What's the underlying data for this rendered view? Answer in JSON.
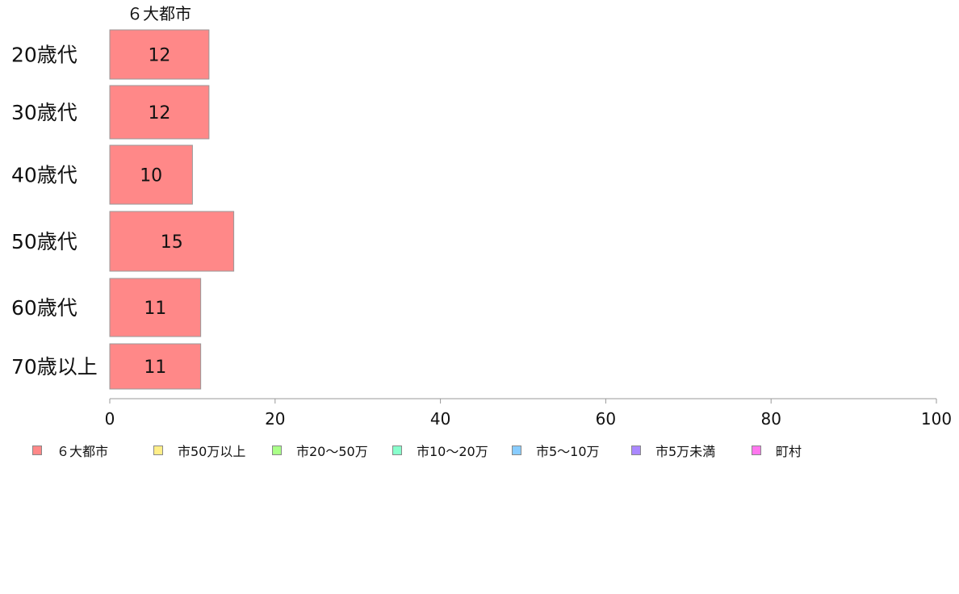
{
  "chart_data": {
    "type": "bar",
    "orientation": "horizontal",
    "stacked": true,
    "categories": [
      "20歳代",
      "30歳代",
      "40歳代",
      "50歳代",
      "60歳代",
      "70歳以上"
    ],
    "series": [
      {
        "name": "６大都市",
        "color": "#ff8888",
        "values": [
          12,
          12,
          10,
          15,
          11,
          11
        ]
      },
      {
        "name": "市50万以上",
        "color": "#ffee88",
        "values": [
          0,
          0,
          0,
          0,
          0,
          0
        ]
      },
      {
        "name": "市20〜50万",
        "color": "#aaff88",
        "values": [
          0,
          0,
          0,
          0,
          0,
          0
        ]
      },
      {
        "name": "市10〜20万",
        "color": "#88ffcc",
        "values": [
          0,
          0,
          0,
          0,
          0,
          0
        ]
      },
      {
        "name": "市5〜10万",
        "color": "#88ccff",
        "values": [
          0,
          0,
          0,
          0,
          0,
          0
        ]
      },
      {
        "name": "市5万未満",
        "color": "#aa88ff",
        "values": [
          0,
          0,
          0,
          0,
          0,
          0
        ]
      },
      {
        "name": "町村",
        "color": "#ff77ee",
        "values": [
          0,
          0,
          0,
          0,
          0,
          0
        ]
      }
    ],
    "xlim": [
      0,
      100
    ],
    "xticks": [
      0,
      20,
      40,
      60,
      80,
      100
    ],
    "segment_header": "６大都市",
    "legend_position": "bottom",
    "grid": false
  }
}
